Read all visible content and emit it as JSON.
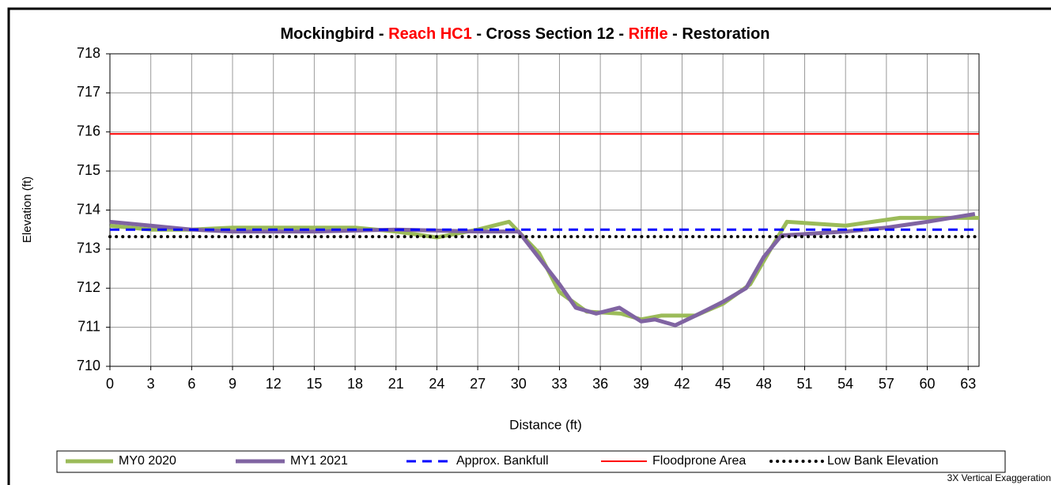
{
  "chart_data": {
    "type": "line",
    "title_parts": [
      {
        "text": "Mockingbird - ",
        "color": "#000000"
      },
      {
        "text": "Reach HC1",
        "color": "#ff0000"
      },
      {
        "text": " - Cross Section 12 - ",
        "color": "#000000"
      },
      {
        "text": "Riffle",
        "color": "#ff0000"
      },
      {
        "text": " - Restoration",
        "color": "#000000"
      }
    ],
    "x_label": "Distance (ft)",
    "y_label": "Elevation (ft)",
    "annotation": "3X Vertical Exaggeration",
    "xlim": [
      0,
      63.8
    ],
    "xticks": [
      0,
      3,
      6,
      9,
      12,
      15,
      18,
      21,
      24,
      27,
      30,
      33,
      36,
      39,
      42,
      45,
      48,
      51,
      54,
      57,
      60,
      63
    ],
    "ylim": [
      710,
      718
    ],
    "yticks": [
      710,
      711,
      712,
      713,
      714,
      715,
      716,
      717,
      718
    ],
    "grid": true,
    "legend": "bottom",
    "series": [
      {
        "name": "MY0 2020",
        "color": "#9bbb59",
        "dash": "solid",
        "width": 5,
        "x": [
          0,
          3,
          6,
          9,
          12,
          15,
          18,
          21,
          24,
          27,
          29.3,
          31.5,
          33,
          35,
          37.5,
          39,
          40.5,
          43,
          45,
          47,
          48.5,
          49.7,
          54,
          58,
          61,
          63.8
        ],
        "values": [
          713.6,
          713.5,
          713.5,
          713.55,
          713.55,
          713.55,
          713.55,
          713.45,
          713.3,
          713.5,
          713.7,
          712.9,
          711.9,
          711.4,
          711.35,
          711.2,
          711.3,
          711.3,
          711.6,
          712.1,
          713,
          713.7,
          713.6,
          713.8,
          713.8,
          713.8
        ]
      },
      {
        "name": "MY1 2021",
        "color": "#8064a2",
        "dash": "solid",
        "width": 5,
        "x": [
          0,
          3,
          6,
          9,
          15,
          21,
          27,
          30,
          31,
          33,
          34.2,
          35.7,
          37.4,
          39,
          40,
          41.5,
          43,
          45,
          46.7,
          48,
          49.3,
          54,
          57,
          60,
          63.5
        ],
        "values": [
          713.7,
          713.6,
          713.5,
          713.45,
          713.45,
          713.5,
          713.45,
          713.45,
          713,
          712.1,
          711.5,
          711.35,
          711.5,
          711.15,
          711.2,
          711.05,
          711.3,
          711.65,
          712,
          712.8,
          713.35,
          713.45,
          713.55,
          713.7,
          713.9
        ]
      },
      {
        "name": "Approx. Bankfull",
        "color": "#0000ff",
        "dash": "dashed",
        "width": 3,
        "value": 713.5
      },
      {
        "name": "Floodprone Area",
        "color": "#ff0000",
        "dash": "solid",
        "width": 2,
        "value": 715.95
      },
      {
        "name": "Low Bank Elevation",
        "color": "#000000",
        "dash": "dotted",
        "width": 4,
        "value": 713.32
      }
    ]
  }
}
